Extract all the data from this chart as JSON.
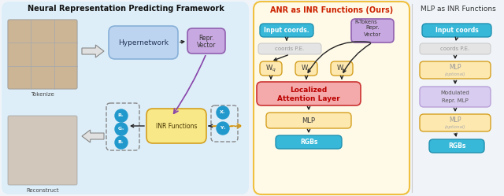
{
  "fig_bg": "#f0f4f8",
  "left_panel_bg": "#ddeef8",
  "middle_panel_bg": "#fffae8",
  "middle_panel_border": "#f0c040",
  "right_panel_bg": "#ffffff",
  "title_left": "Neural Representation Predicting Framework",
  "title_middle": "ANR as INR Functions (Ours)",
  "title_right": "MLP as INR Functions",
  "color_blue_box": "#38b8d8",
  "color_purple_box": "#c8a8e0",
  "color_orange_box_light": "#fde8b0",
  "color_pink_box": "#f4aaaa",
  "color_gray_box": "#e4e4e4",
  "color_lavender_box": "#d8ccf0",
  "color_hypernetwork_box": "#bcd4f0",
  "color_inr_box": "#f8e888",
  "arrow_color": "#222222",
  "dashed_orange": "#d49000",
  "purple_arrow": "#8844aa"
}
